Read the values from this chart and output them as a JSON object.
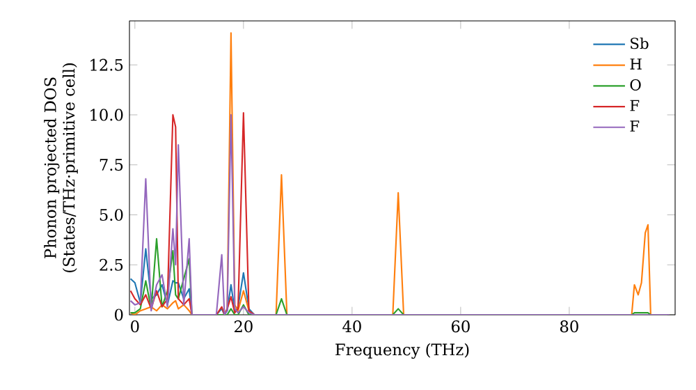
{
  "chart_data": {
    "type": "line",
    "xlabel": "Frequency (THz)",
    "ylabel": "Phonon projected DOS\n(States/THz·primitive cell)",
    "x": [
      -0.8,
      0,
      1,
      2,
      3,
      4,
      5,
      6,
      7,
      7.5,
      8,
      9,
      10,
      10.5,
      15,
      16,
      16.5,
      17,
      17.7,
      18.4,
      19,
      20,
      21,
      22,
      26,
      27,
      28,
      47.5,
      48.5,
      49.5,
      91.5,
      92,
      92.7,
      93.3,
      94,
      94.5,
      95,
      98.5
    ],
    "series": [
      {
        "name": "Sb",
        "color": "#1f77b4",
        "values": [
          1.8,
          1.6,
          0.6,
          3.3,
          0.8,
          1.0,
          1.5,
          0.5,
          1.7,
          1.6,
          1.6,
          0.8,
          1.3,
          0,
          0,
          0.3,
          0,
          0.2,
          1.5,
          0.2,
          0.4,
          2.1,
          0.3,
          0,
          0,
          null,
          null,
          null,
          null,
          null,
          null,
          null,
          null,
          null,
          null,
          null,
          null,
          null
        ]
      },
      {
        "name": "H",
        "color": "#ff7f0e",
        "values": [
          0.1,
          0,
          0.2,
          0.3,
          0.4,
          0.2,
          0.5,
          0.3,
          0.6,
          0.7,
          0.3,
          0.5,
          0.2,
          0,
          0,
          0,
          0,
          0.3,
          14.1,
          0.5,
          0.2,
          1.2,
          0.2,
          0,
          0,
          7.0,
          0,
          0,
          6.1,
          0,
          0,
          1.5,
          1.0,
          1.6,
          4.1,
          4.5,
          0,
          0
        ]
      },
      {
        "name": "O",
        "color": "#2ca02c",
        "values": [
          0.1,
          0.1,
          0.3,
          1.7,
          0.3,
          3.8,
          0.4,
          1.2,
          3.2,
          1.0,
          0.8,
          1.8,
          2.8,
          0,
          0,
          0,
          0,
          0,
          0.3,
          0,
          0,
          0.5,
          0,
          0,
          0,
          0.8,
          0,
          0,
          0.3,
          0,
          0,
          0.1,
          0.1,
          0.1,
          0.1,
          0.1,
          0,
          0
        ]
      },
      {
        "name": "F",
        "color": "#d62728",
        "values": [
          1.2,
          0.8,
          0.5,
          1.0,
          0.3,
          1.2,
          0.4,
          0.8,
          10.0,
          9.4,
          0.8,
          0.5,
          0.8,
          0,
          0,
          0.4,
          0,
          0.3,
          0.9,
          0.1,
          0.3,
          10.1,
          0.2,
          0,
          0,
          null,
          null,
          null,
          null,
          null,
          null,
          null,
          null,
          null,
          null,
          null,
          null,
          null
        ]
      },
      {
        "name": "F",
        "color": "#9467bd",
        "values": [
          0.7,
          0.5,
          0.6,
          6.8,
          0.2,
          1.5,
          2.0,
          0.4,
          4.3,
          2.5,
          8.5,
          0.5,
          3.8,
          0,
          0,
          3.0,
          0,
          0.2,
          10.0,
          0.3,
          0.1,
          0.4,
          0.1,
          0,
          0,
          0,
          0,
          0,
          0,
          0,
          0,
          0,
          0,
          0,
          0,
          0,
          0,
          0
        ]
      }
    ],
    "xlim": [
      -1,
      99.5
    ],
    "ylim": [
      0,
      14.7
    ],
    "xticks": [
      0,
      20,
      40,
      60,
      80
    ],
    "yticks": [
      0,
      2.5,
      {
        "value": 5,
        "label": "5.0"
      },
      7.5,
      {
        "value": 10,
        "label": "10.0"
      },
      12.5
    ],
    "legend": "top right",
    "grid": false,
    "line_style": "solid",
    "marker": "none"
  }
}
